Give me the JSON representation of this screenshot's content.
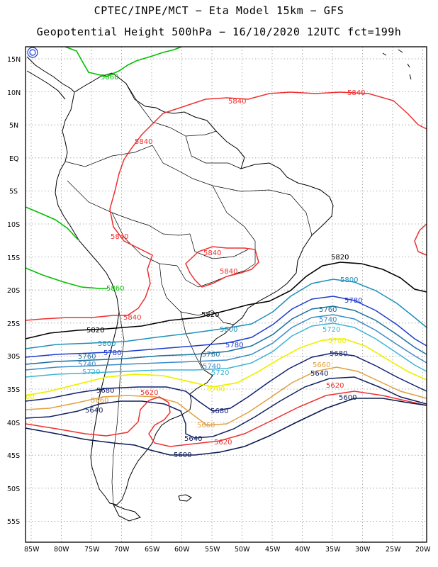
{
  "header": {
    "line1": "CPTEC/INPE/MCT −  Eta Model 15km − GFS",
    "line2": "Geopotential Height 500hPa − 16/10/2020 12UTC fct=199h"
  },
  "axes": {
    "lat_labels": [
      "15N",
      "10N",
      "5N",
      "EQ",
      "5S",
      "10S",
      "15S",
      "20S",
      "25S",
      "30S",
      "35S",
      "40S",
      "45S",
      "50S",
      "55S"
    ],
    "lon_labels": [
      "85W",
      "80W",
      "75W",
      "70W",
      "65W",
      "60W",
      "55W",
      "50W",
      "45W",
      "40W",
      "35W",
      "30W",
      "25W",
      "20W"
    ]
  },
  "contour_colors": {
    "5860": "#00c000",
    "5840": "#ee3030",
    "5820": "#000000",
    "5800": "#1e8fb8",
    "5780": "#1e3ccc",
    "5760": "#1a6fa0",
    "5740": "#3c8cc8",
    "5720": "#3cb4d8",
    "5700": "#f0f000",
    "5680": "#102070",
    "5660": "#e0a040",
    "5640": "#102060",
    "5620": "#ee3030",
    "5600": "#0a1a50"
  },
  "contour_labels": {
    "l5860a": "5860",
    "l5860b": "5860",
    "l5840a": "5840",
    "l5840b": "5840",
    "l5840c": "5840",
    "l5840d": "5840",
    "l5840e": "5840",
    "l5840f": "5840",
    "l5840g": "5840",
    "l5820a": "5820",
    "l5820b": "5820",
    "l5820c": "5820",
    "l5800a": "5800",
    "l5800b": "5800",
    "l5800c": "5800",
    "l5780a": "5780",
    "l5780b": "5780",
    "l5780c": "5780",
    "l5760a": "5760",
    "l5760b": "5760",
    "l5760c": "5760",
    "l5740a": "5740",
    "l5740b": "5740",
    "l5740c": "5740",
    "l5720a": "5720",
    "l5720b": "5720",
    "l5720c": "5720",
    "l5700a": "5700",
    "l5700b": "5700",
    "l5700c": "00",
    "l5680a": "5680",
    "l5680b": "5680",
    "l5680c": "5680",
    "l5660a": "5660",
    "l5660b": "5660",
    "l5660c": "5660",
    "l5640a": "5640",
    "l5640b": "5640",
    "l5640c": "5640",
    "l5620a": "5620",
    "l5620b": "5620",
    "l5620c": "5620",
    "l5600a": "5600",
    "l5600b": "5600"
  }
}
